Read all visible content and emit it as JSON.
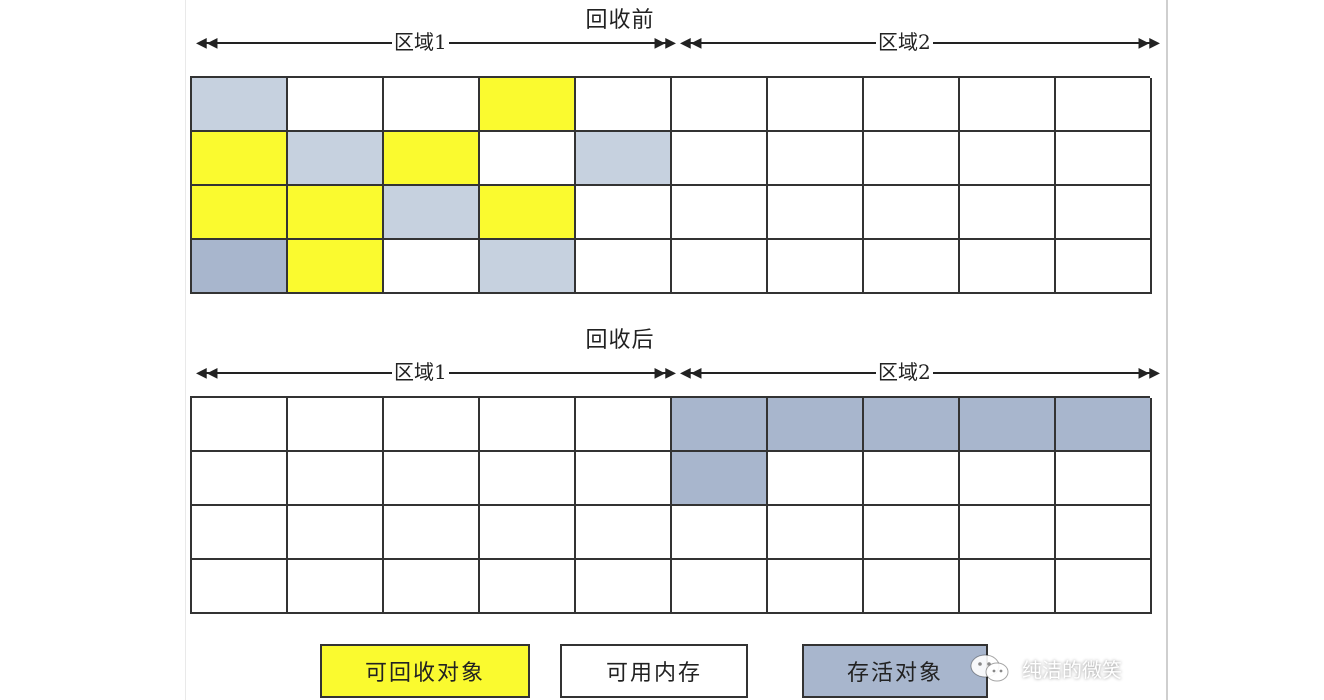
{
  "before": {
    "title": "回收前",
    "region1_label": "区域1",
    "region2_label": "区域2",
    "grid": [
      [
        "lightblue",
        "white",
        "white",
        "yellow",
        "white",
        "white",
        "white",
        "white",
        "white",
        "white"
      ],
      [
        "yellow",
        "lightblue",
        "yellow",
        "white",
        "lightblue",
        "white",
        "white",
        "white",
        "white",
        "white"
      ],
      [
        "yellow",
        "yellow",
        "lightblue",
        "yellow",
        "white",
        "white",
        "white",
        "white",
        "white",
        "white"
      ],
      [
        "blue",
        "yellow",
        "white",
        "lightblue",
        "white",
        "white",
        "white",
        "white",
        "white",
        "white"
      ]
    ]
  },
  "after": {
    "title": "回收后",
    "region1_label": "区域1",
    "region2_label": "区域2",
    "grid": [
      [
        "white",
        "white",
        "white",
        "white",
        "white",
        "blue",
        "blue",
        "blue",
        "blue",
        "blue"
      ],
      [
        "white",
        "white",
        "white",
        "white",
        "white",
        "blue",
        "white",
        "white",
        "white",
        "white"
      ],
      [
        "white",
        "white",
        "white",
        "white",
        "white",
        "white",
        "white",
        "white",
        "white",
        "white"
      ],
      [
        "white",
        "white",
        "white",
        "white",
        "white",
        "white",
        "white",
        "white",
        "white",
        "white"
      ]
    ]
  },
  "legend": {
    "recyclable": "可回收对象",
    "free": "可用内存",
    "alive": "存活对象"
  },
  "colors": {
    "recyclable": "#fafa2f",
    "alive": "#a8b6cd",
    "alive_light": "#c6d1df",
    "free": "#ffffff"
  },
  "watermark": {
    "icon": "wechat-icon",
    "text": "纯洁的微笑"
  }
}
